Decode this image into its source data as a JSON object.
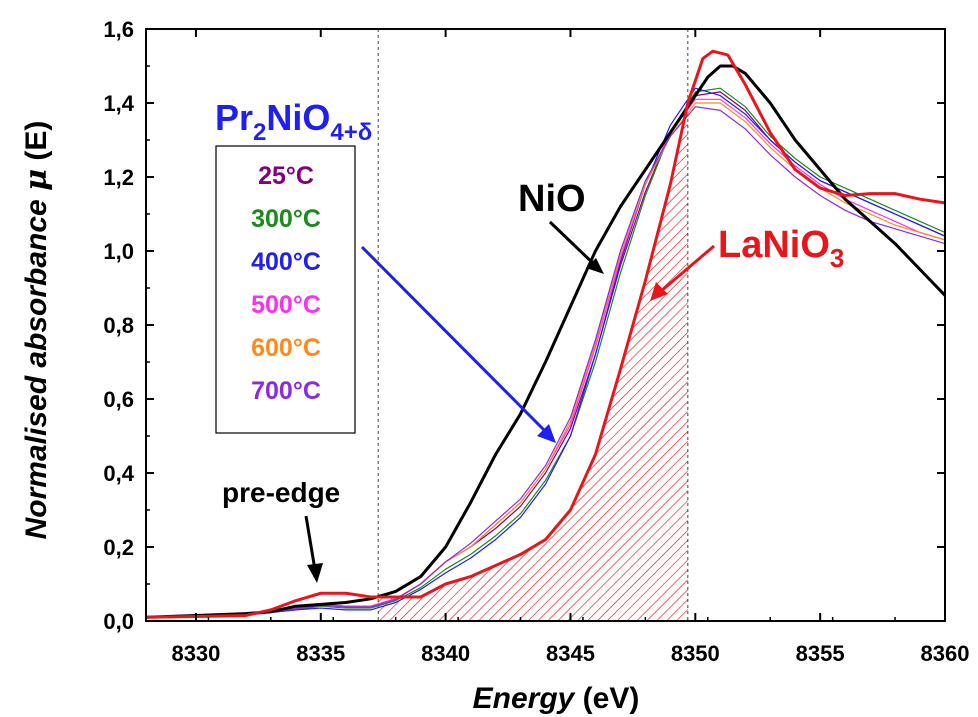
{
  "chart_data": {
    "type": "line",
    "xlabel_italic": "Energy",
    "xlabel_unit": " (eV)",
    "ylabel_prefix": "Normalised absorbance ",
    "ylabel_mu": "μ",
    "ylabel_suffix": " (E)",
    "xlim": [
      8328,
      8360
    ],
    "ylim": [
      0,
      1.6
    ],
    "xticks": [
      8330,
      8335,
      8340,
      8345,
      8350,
      8355,
      8360
    ],
    "xtick_labels": [
      "8330",
      "8335",
      "8340",
      "8345",
      "8350",
      "8355",
      "8360"
    ],
    "yticks": [
      0,
      0.2,
      0.4,
      0.6,
      0.8,
      1.0,
      1.2,
      1.4,
      1.6
    ],
    "ytick_labels": [
      "0,0",
      "0,2",
      "0,4",
      "0,6",
      "0,8",
      "1,0",
      "1,2",
      "1,4",
      "1,6"
    ],
    "vlines": [
      8337.3,
      8349.7
    ],
    "hatched_region": {
      "x_from": 8337.3,
      "x_to": 8349.7,
      "series": "LaNiO3",
      "color": "#e8161b"
    },
    "legend_title": {
      "base": "Pr",
      "sub1": "2",
      "mid": "NiO",
      "sub2": "4+δ",
      "color": "#1f1ff0"
    },
    "legend": [
      {
        "label": "25°C",
        "color": "#800080"
      },
      {
        "label": "300°C",
        "color": "#1b8a1b"
      },
      {
        "label": "400°C",
        "color": "#1f1ff0"
      },
      {
        "label": "500°C",
        "color": "#ff2ff0"
      },
      {
        "label": "600°C",
        "color": "#ff8a1b"
      },
      {
        "label": "700°C",
        "color": "#8a2be2"
      }
    ],
    "annotations": {
      "nio": "NiO",
      "lanio3_base": "LaNiO",
      "lanio3_sub": "3",
      "pre_edge": "pre-edge"
    },
    "series": [
      {
        "name": "NiO",
        "color": "#000000",
        "width": 3,
        "x": [
          8328,
          8330,
          8332,
          8333,
          8334,
          8335,
          8336,
          8337,
          8338,
          8339,
          8340,
          8341,
          8342,
          8343,
          8344,
          8345,
          8346,
          8347,
          8348,
          8349,
          8350,
          8350.5,
          8351,
          8351.5,
          8352,
          8353,
          8354,
          8355,
          8356,
          8357,
          8358,
          8359,
          8360
        ],
        "y": [
          0.01,
          0.015,
          0.02,
          0.025,
          0.04,
          0.045,
          0.05,
          0.06,
          0.08,
          0.12,
          0.2,
          0.32,
          0.45,
          0.56,
          0.7,
          0.85,
          1.0,
          1.12,
          1.22,
          1.32,
          1.42,
          1.47,
          1.5,
          1.5,
          1.48,
          1.4,
          1.3,
          1.22,
          1.14,
          1.08,
          1.02,
          0.95,
          0.88
        ]
      },
      {
        "name": "LaNiO3",
        "color": "#e8161b",
        "width": 3,
        "x": [
          8328,
          8330,
          8332,
          8333,
          8334,
          8335,
          8336,
          8337,
          8338,
          8339,
          8340,
          8341,
          8342,
          8343,
          8344,
          8345,
          8346,
          8347,
          8348,
          8349,
          8349.7,
          8350.3,
          8350.7,
          8351.3,
          8352,
          8353,
          8354,
          8355,
          8356,
          8357,
          8358,
          8359,
          8360
        ],
        "y": [
          0.01,
          0.012,
          0.015,
          0.03,
          0.055,
          0.075,
          0.075,
          0.065,
          0.065,
          0.065,
          0.1,
          0.12,
          0.15,
          0.18,
          0.22,
          0.3,
          0.45,
          0.68,
          0.92,
          1.18,
          1.4,
          1.52,
          1.54,
          1.53,
          1.45,
          1.32,
          1.22,
          1.17,
          1.15,
          1.155,
          1.155,
          1.14,
          1.13
        ]
      },
      {
        "name": "",
        "color": "#800080",
        "width": 1.2,
        "x": [
          8328,
          8330,
          8332,
          8334,
          8335,
          8336,
          8337,
          8338,
          8339,
          8340,
          8341,
          8342,
          8343,
          8344,
          8345,
          8346,
          8347,
          8348,
          8349,
          8350,
          8351,
          8352,
          8353,
          8354,
          8355,
          8356,
          8357,
          8358,
          8359,
          8360
        ],
        "y": [
          0.01,
          0.012,
          0.018,
          0.035,
          0.045,
          0.04,
          0.04,
          0.06,
          0.1,
          0.16,
          0.2,
          0.25,
          0.31,
          0.4,
          0.52,
          0.72,
          0.96,
          1.16,
          1.32,
          1.42,
          1.43,
          1.38,
          1.3,
          1.24,
          1.19,
          1.16,
          1.13,
          1.1,
          1.07,
          1.04
        ]
      },
      {
        "name": "",
        "color": "#1b8a1b",
        "width": 1.2,
        "x": [
          8328,
          8330,
          8332,
          8334,
          8335,
          8336,
          8337,
          8338,
          8339,
          8340,
          8341,
          8342,
          8343,
          8344,
          8345,
          8346,
          8347,
          8348,
          8349,
          8350,
          8351,
          8352,
          8353,
          8354,
          8355,
          8356,
          8357,
          8358,
          8359,
          8360
        ],
        "y": [
          0.01,
          0.012,
          0.017,
          0.03,
          0.04,
          0.035,
          0.035,
          0.055,
          0.09,
          0.14,
          0.18,
          0.23,
          0.29,
          0.38,
          0.5,
          0.7,
          0.94,
          1.15,
          1.32,
          1.43,
          1.44,
          1.39,
          1.31,
          1.25,
          1.2,
          1.17,
          1.14,
          1.11,
          1.08,
          1.05
        ]
      },
      {
        "name": "",
        "color": "#1f1ff0",
        "width": 1.2,
        "x": [
          8328,
          8330,
          8332,
          8334,
          8335,
          8336,
          8337,
          8338,
          8339,
          8340,
          8341,
          8342,
          8343,
          8344,
          8345,
          8346,
          8347,
          8348,
          8349,
          8350,
          8351,
          8352,
          8353,
          8354,
          8355,
          8356,
          8357,
          8358,
          8359,
          8360
        ],
        "y": [
          0.01,
          0.012,
          0.016,
          0.03,
          0.035,
          0.03,
          0.03,
          0.05,
          0.085,
          0.13,
          0.17,
          0.22,
          0.28,
          0.37,
          0.5,
          0.72,
          0.97,
          1.18,
          1.34,
          1.44,
          1.42,
          1.37,
          1.3,
          1.24,
          1.19,
          1.16,
          1.13,
          1.1,
          1.07,
          1.04
        ]
      },
      {
        "name": "",
        "color": "#ff2ff0",
        "width": 1.2,
        "x": [
          8328,
          8330,
          8332,
          8334,
          8335,
          8336,
          8337,
          8338,
          8339,
          8340,
          8341,
          8342,
          8343,
          8344,
          8345,
          8346,
          8347,
          8348,
          8349,
          8350,
          8351,
          8352,
          8353,
          8354,
          8355,
          8356,
          8357,
          8358,
          8359,
          8360
        ],
        "y": [
          0.01,
          0.012,
          0.018,
          0.035,
          0.045,
          0.04,
          0.04,
          0.06,
          0.1,
          0.16,
          0.2,
          0.26,
          0.32,
          0.41,
          0.53,
          0.74,
          0.98,
          1.18,
          1.32,
          1.41,
          1.41,
          1.36,
          1.29,
          1.23,
          1.18,
          1.14,
          1.11,
          1.08,
          1.05,
          1.03
        ]
      },
      {
        "name": "",
        "color": "#ff8a1b",
        "width": 1.2,
        "x": [
          8328,
          8330,
          8332,
          8334,
          8335,
          8336,
          8337,
          8338,
          8339,
          8340,
          8341,
          8342,
          8343,
          8344,
          8345,
          8346,
          8347,
          8348,
          8349,
          8350,
          8351,
          8352,
          8353,
          8354,
          8355,
          8356,
          8357,
          8358,
          8359,
          8360
        ],
        "y": [
          0.01,
          0.012,
          0.017,
          0.033,
          0.042,
          0.038,
          0.038,
          0.058,
          0.1,
          0.16,
          0.2,
          0.26,
          0.32,
          0.41,
          0.54,
          0.75,
          0.99,
          1.18,
          1.31,
          1.4,
          1.4,
          1.35,
          1.28,
          1.22,
          1.17,
          1.13,
          1.1,
          1.07,
          1.05,
          1.03
        ]
      },
      {
        "name": "",
        "color": "#8a2be2",
        "width": 1.2,
        "x": [
          8328,
          8330,
          8332,
          8334,
          8335,
          8336,
          8337,
          8338,
          8339,
          8340,
          8341,
          8342,
          8343,
          8344,
          8345,
          8346,
          8347,
          8348,
          8349,
          8350,
          8351,
          8352,
          8353,
          8354,
          8355,
          8356,
          8357,
          8358,
          8359,
          8360
        ],
        "y": [
          0.01,
          0.012,
          0.017,
          0.033,
          0.042,
          0.038,
          0.038,
          0.058,
          0.1,
          0.16,
          0.21,
          0.27,
          0.33,
          0.42,
          0.55,
          0.76,
          1.0,
          1.19,
          1.31,
          1.39,
          1.38,
          1.33,
          1.26,
          1.2,
          1.15,
          1.11,
          1.08,
          1.06,
          1.04,
          1.02
        ]
      }
    ]
  }
}
